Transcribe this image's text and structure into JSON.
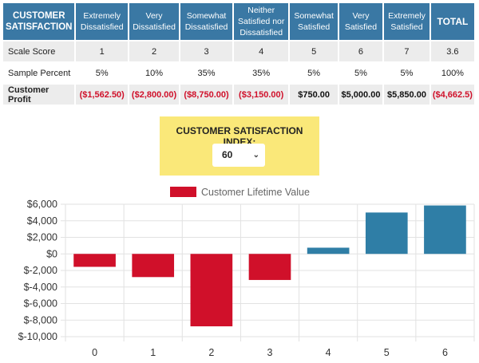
{
  "table": {
    "header": {
      "lead": "CUSTOMER SATISFACTION",
      "columns": [
        "Extremely Dissatisfied",
        "Very Dissatisfied",
        "Somewhat Dissatisfied",
        "Neither Satisfied nor Dissatisfied",
        "Somewhat Satisfied",
        "Very Satisfied",
        "Extremely Satisfied"
      ],
      "total": "TOTAL"
    },
    "rows": [
      {
        "label": "Scale Score",
        "cells": [
          "1",
          "2",
          "3",
          "4",
          "5",
          "6",
          "7"
        ],
        "total": "3.6"
      },
      {
        "label": "Sample Percent",
        "cells": [
          "5%",
          "10%",
          "35%",
          "35%",
          "5%",
          "5%",
          "5%"
        ],
        "total": "100%"
      },
      {
        "label": "Customer Profit",
        "cells": [
          "($1,562.50)",
          "($2,800.00)",
          "($8,750.00)",
          "($3,150.00)",
          "$750.00",
          "$5,000.00",
          "$5,850.00"
        ],
        "total": "($4,662.5)"
      }
    ]
  },
  "index_box": {
    "title": "CUSTOMER SATISFACTION INDEX:",
    "selected": "60",
    "chevron_icon": "chevron-down-icon"
  },
  "colors": {
    "header_blue": "#3a78a4",
    "negative_red": "#d0102a",
    "index_yellow": "#fae879",
    "bar_red": "#d0102a",
    "bar_blue": "#2f7ea6"
  },
  "chart_data": {
    "type": "bar",
    "categories": [
      "0",
      "1",
      "2",
      "3",
      "4",
      "5",
      "6"
    ],
    "series": [
      {
        "name": "Customer Lifetime Value",
        "values": [
          -1562.5,
          -2800,
          -8750,
          -3150,
          750,
          5000,
          5850
        ]
      }
    ],
    "ylim": [
      -10000,
      6000
    ],
    "yticks": [
      6000,
      4000,
      2000,
      0,
      -2000,
      -4000,
      -6000,
      -8000,
      -10000
    ],
    "ytick_labels": [
      "$6,000",
      "$4,000",
      "$2,000",
      "$0",
      "$-2,000",
      "$-4,000",
      "$-6,000",
      "$-8,000",
      "$-10,000"
    ],
    "grid": true,
    "legend": "top-center"
  }
}
